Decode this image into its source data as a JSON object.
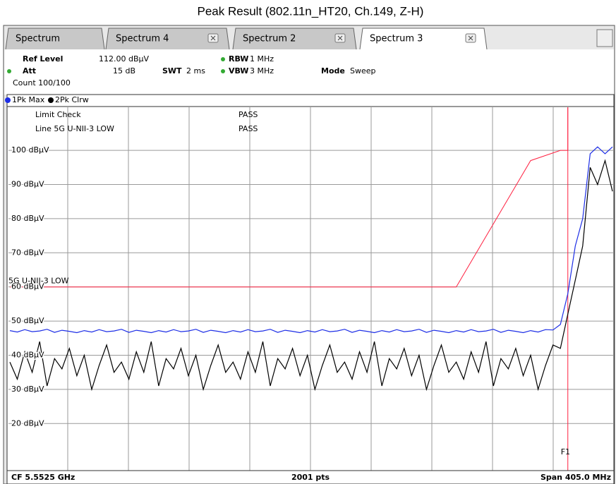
{
  "chart_data": {
    "type": "line",
    "title": "Peak Result (802.11n_HT20, Ch.149, Z-H)",
    "tabs": [
      "Spectrum",
      "Spectrum 4",
      "Spectrum 2",
      "Spectrum 3"
    ],
    "info": {
      "ref_level": "Ref Level",
      "ref_value": "112.00 dBµV",
      "att": "Att",
      "att_value": "15 dB",
      "swt": "SWT",
      "swt_value": "2 ms",
      "rbw": "RBW",
      "rbw_value": "1 MHz",
      "vbw": "VBW",
      "vbw_value": "3 MHz",
      "mode": "Mode",
      "mode_value": "Sweep",
      "count": "Count 100/100"
    },
    "limit_check": "Limit Check",
    "limit_check_result": "PASS",
    "limit_line_name": "Line 5G U-NII-3 LOW",
    "limit_line_result": "PASS",
    "footer": {
      "center_freq": "CF 5.5525 GHz",
      "points": "2001 pts",
      "span": "Span 405.0 MHz"
    },
    "ylim": [
      12,
      112
    ],
    "yticks": [
      {
        "value": 20,
        "label": "20 dBµV"
      },
      {
        "value": 30,
        "label": "30 dBµV"
      },
      {
        "value": 40,
        "label": "40 dBµV"
      },
      {
        "value": 50,
        "label": "50 dBµV"
      },
      {
        "value": 60,
        "label": "60 dBµV"
      },
      {
        "value": 70,
        "label": "70 dBµV"
      },
      {
        "value": 80,
        "label": "80 dBµV"
      },
      {
        "value": 90,
        "label": "90 dBµV"
      },
      {
        "value": 100,
        "label": "100 dBµV"
      }
    ],
    "xlim": [
      5350,
      5755
    ],
    "grid": true,
    "x": [
      5350,
      5355,
      5360,
      5365,
      5370,
      5375,
      5380,
      5385,
      5390,
      5395,
      5400,
      5405,
      5410,
      5415,
      5420,
      5425,
      5430,
      5435,
      5440,
      5445,
      5450,
      5455,
      5460,
      5465,
      5470,
      5475,
      5480,
      5485,
      5490,
      5495,
      5500,
      5505,
      5510,
      5515,
      5520,
      5525,
      5530,
      5535,
      5540,
      5545,
      5550,
      5555,
      5560,
      5565,
      5570,
      5575,
      5580,
      5585,
      5590,
      5595,
      5600,
      5605,
      5610,
      5615,
      5620,
      5625,
      5630,
      5635,
      5640,
      5645,
      5650,
      5655,
      5660,
      5665,
      5670,
      5675,
      5680,
      5685,
      5690,
      5695,
      5700,
      5705,
      5710,
      5715,
      5720,
      5725,
      5730,
      5735,
      5740,
      5745,
      5750,
      5755
    ],
    "series": [
      {
        "name": "1Pk Max",
        "color": "#1d2ee6",
        "values": [
          47.2,
          46.8,
          47.5,
          46.9,
          47.1,
          47.6,
          46.7,
          47.3,
          47.0,
          46.6,
          47.2,
          46.8,
          47.5,
          46.9,
          47.1,
          47.6,
          46.7,
          47.3,
          47.0,
          46.6,
          47.2,
          46.8,
          47.5,
          46.9,
          47.1,
          47.6,
          46.7,
          47.3,
          47.0,
          46.6,
          47.2,
          46.8,
          47.5,
          46.9,
          47.1,
          47.6,
          46.7,
          47.3,
          47.0,
          46.6,
          47.2,
          46.8,
          47.5,
          46.9,
          47.1,
          47.6,
          46.7,
          47.3,
          47.0,
          46.6,
          47.2,
          46.8,
          47.5,
          46.9,
          47.1,
          47.6,
          46.7,
          47.3,
          47.0,
          46.6,
          47.2,
          46.8,
          47.5,
          46.9,
          47.1,
          47.6,
          46.7,
          47.3,
          47.0,
          46.6,
          47.2,
          46.8,
          47.5,
          47.4,
          49,
          58,
          72,
          80,
          99,
          101,
          99,
          101
        ]
      },
      {
        "name": "2Pk Clrw",
        "color": "#000000",
        "values": [
          38,
          33,
          41,
          35,
          44,
          31,
          39,
          36,
          42,
          34,
          40,
          30,
          37,
          43,
          35,
          38,
          33,
          41,
          35,
          44,
          31,
          39,
          36,
          42,
          34,
          40,
          30,
          37,
          43,
          35,
          38,
          33,
          41,
          35,
          44,
          31,
          39,
          36,
          42,
          34,
          40,
          30,
          37,
          43,
          35,
          38,
          33,
          41,
          35,
          44,
          31,
          39,
          36,
          42,
          34,
          40,
          30,
          37,
          43,
          35,
          38,
          33,
          41,
          35,
          44,
          31,
          39,
          36,
          42,
          34,
          40,
          30,
          37,
          43,
          42,
          52,
          62,
          72,
          95,
          90,
          97,
          88
        ]
      }
    ],
    "limit_line": {
      "name": "5G U-NII-3 LOW",
      "color": "#ff2040",
      "x": [
        5350,
        5650,
        5700,
        5720,
        5725,
        5725
      ],
      "values": [
        60,
        60,
        97,
        100,
        100,
        122
      ]
    },
    "marker": {
      "label": "F1",
      "x": 5725,
      "color": "#ff2040"
    }
  }
}
